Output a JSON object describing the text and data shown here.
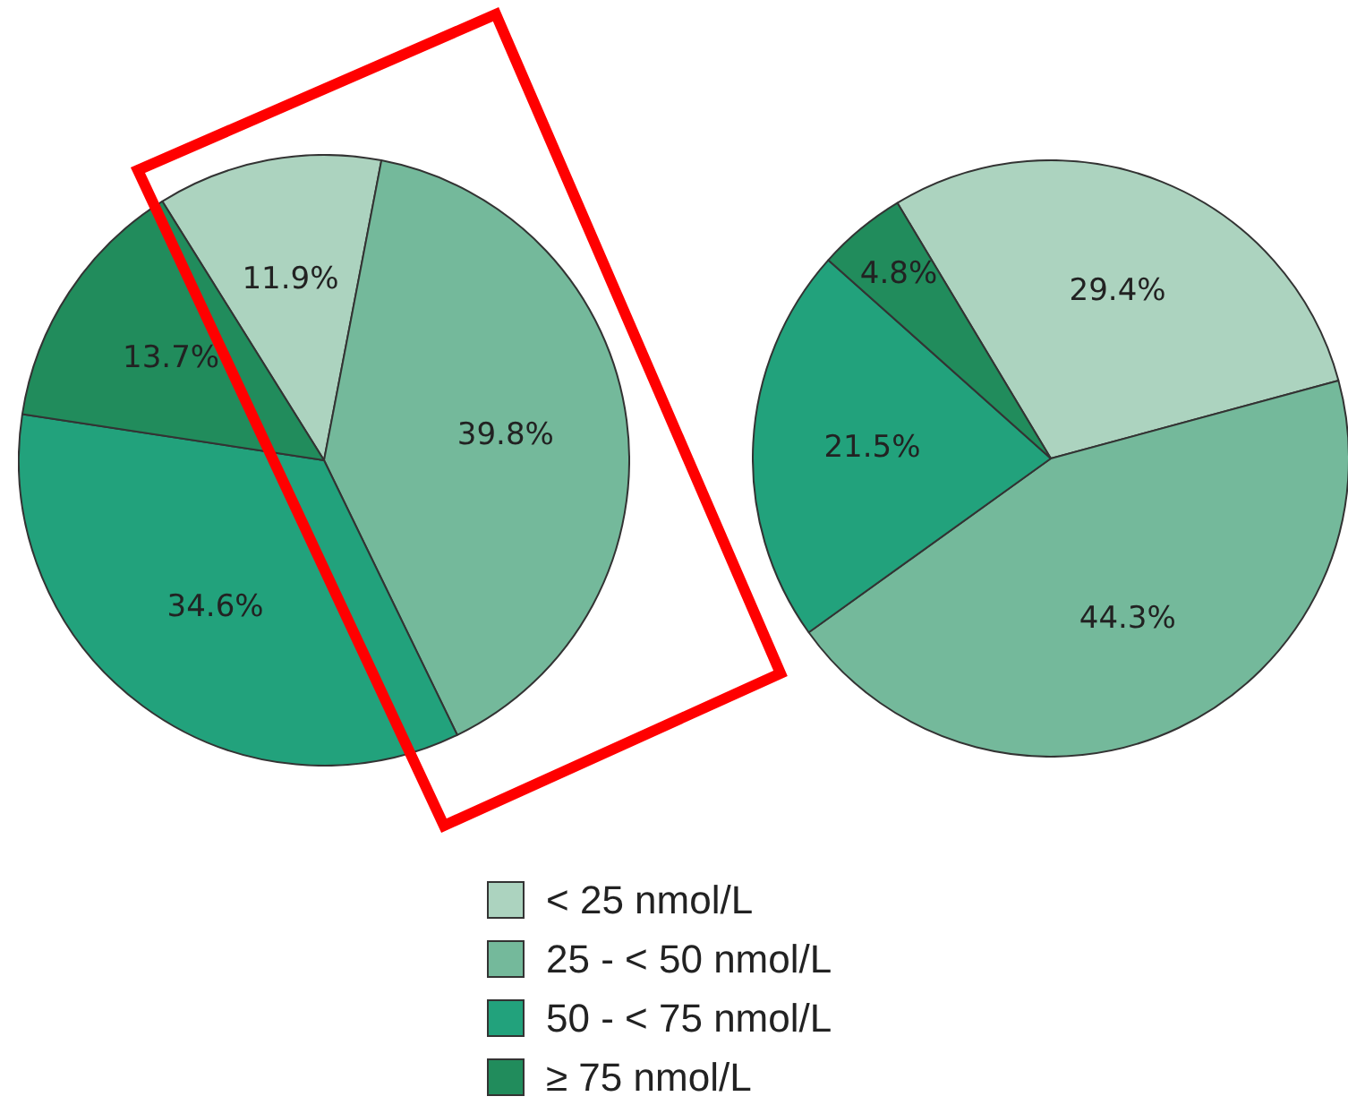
{
  "chart_data": [
    {
      "type": "pie",
      "categories": [
        "< 25 nmol/L",
        "25 - < 50 nmol/L",
        "50 - < 75 nmol/L",
        "≥ 75 nmol/L"
      ],
      "values": [
        11.9,
        39.8,
        34.6,
        13.7
      ],
      "colors": [
        "#acd3bf",
        "#74b99b",
        "#22a27c",
        "#218c5c"
      ],
      "value_labels": [
        "11.9%",
        "39.8%",
        "34.6%",
        "13.7%"
      ],
      "legend": "bottom"
    },
    {
      "type": "pie",
      "categories": [
        null,
        null,
        null,
        null
      ],
      "values": [
        29.4,
        44.3,
        21.5,
        4.8
      ],
      "colors": [
        "#acd3bf",
        "#74b99b",
        "#22a27c",
        "#218c5c"
      ],
      "value_labels": [
        "29.4%",
        "44.3%",
        "21.5%",
        "4.8%"
      ]
    }
  ]
}
